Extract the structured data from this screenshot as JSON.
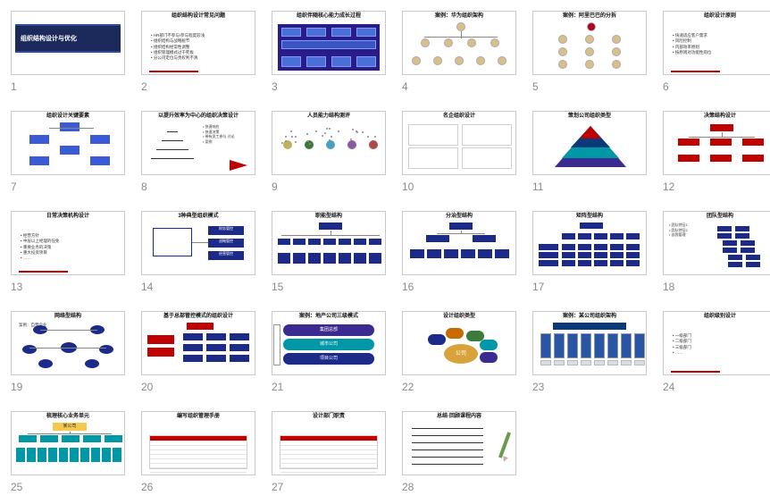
{
  "grid": {
    "columns": 6
  },
  "colors": {
    "deep_blue": "#1c2a5b",
    "purple_bg": "#2a1a8a",
    "node_blue": "#1c2a8a",
    "red": "#c00000",
    "teal": "#0097a7",
    "border": "#c9c9c9",
    "num": "#8a8a8a"
  },
  "slides": [
    {
      "n": 1,
      "variant": "title_card",
      "title": "组织结构设计与优化"
    },
    {
      "n": 2,
      "variant": "bullets",
      "title": "组织结构设计常见问题",
      "items": [
        "HR部门不参与/参与程度较浅",
        "组织结构与战略脱节",
        "组织结构经常性调整",
        "组织管理模式过于死板",
        "分公司定位与责权利不清"
      ]
    },
    {
      "n": 3,
      "variant": "purple_flow",
      "title": "组织伴随核心能力成长过程"
    },
    {
      "n": 4,
      "variant": "avatars_org",
      "title": "案例：华为组织架构"
    },
    {
      "n": 5,
      "variant": "avatars_split",
      "title": "案例：阿里巴巴的分拆"
    },
    {
      "n": 6,
      "variant": "bullets",
      "title": "组织设计原则",
      "items": [
        "快速适应客户需求",
        "风险控制",
        "内部效率原则",
        "按原则对功能性岗位"
      ]
    },
    {
      "n": 7,
      "variant": "cycle_blue",
      "title": "组织设计关键要素"
    },
    {
      "n": 8,
      "variant": "pyramid_side",
      "title": "以提升效率为中心的组织决策设计",
      "items": [
        "快速响应",
        "快速决策",
        "带有员工参与 讨论",
        "案例"
      ]
    },
    {
      "n": 9,
      "variant": "dots_scatter",
      "title": "人员能力结构测评"
    },
    {
      "n": 10,
      "variant": "four_panels",
      "title": "名企组织设计"
    },
    {
      "n": 11,
      "variant": "pyramid_color",
      "title": "策划公司组织类型"
    },
    {
      "n": 12,
      "variant": "org_tree_red",
      "title": "决策结构设计"
    },
    {
      "n": 13,
      "variant": "bullets_red",
      "title": "日常决策机构设计",
      "items": [
        "经营方针",
        "中层以上经理的任免",
        "重要业务的决策",
        "重大投资项目",
        "……"
      ]
    },
    {
      "n": 14,
      "variant": "three_model",
      "title": "3种典型组织模式",
      "items": [
        "财务管控",
        "战略管控",
        "经营管控"
      ]
    },
    {
      "n": 15,
      "variant": "org_wide_blue",
      "title": "职能型结构"
    },
    {
      "n": 16,
      "variant": "org_two_branch",
      "title": "分治型结构"
    },
    {
      "n": 17,
      "variant": "matrix_org",
      "title": "矩阵型结构"
    },
    {
      "n": 18,
      "variant": "team_clusters",
      "title": "团队型结构",
      "items": [
        "团队特征1",
        "团队特征2",
        "自我管理"
      ]
    },
    {
      "n": 19,
      "variant": "network_hub",
      "title": "网络型结构",
      "subtitle": "案例：自营企业"
    },
    {
      "n": 20,
      "variant": "hq_control",
      "title": "基于总部管控模式的组织设计"
    },
    {
      "n": 21,
      "variant": "three_tier",
      "title": "案例：地产公司三级模式",
      "rows": [
        "集团总部",
        "城市公司",
        "项目公司"
      ]
    },
    {
      "n": 22,
      "variant": "fan_center",
      "title": "设计组织类型",
      "center": "公司"
    },
    {
      "n": 23,
      "variant": "building_org",
      "title": "案例：某公司组织架构"
    },
    {
      "n": 24,
      "variant": "bullets",
      "title": "组织级别设计",
      "items": [
        "一级部门",
        "二级部门",
        "三级部门",
        "……"
      ]
    },
    {
      "n": 25,
      "variant": "org_yellow_top",
      "title": "梳理核心业务单元",
      "top": "某公司"
    },
    {
      "n": 26,
      "variant": "form_table",
      "title": "编写组织管理手册"
    },
    {
      "n": 27,
      "variant": "form_table",
      "title": "设计部门职责"
    },
    {
      "n": 28,
      "variant": "lines_pencil",
      "title": "总结·回顾课程内容"
    }
  ]
}
